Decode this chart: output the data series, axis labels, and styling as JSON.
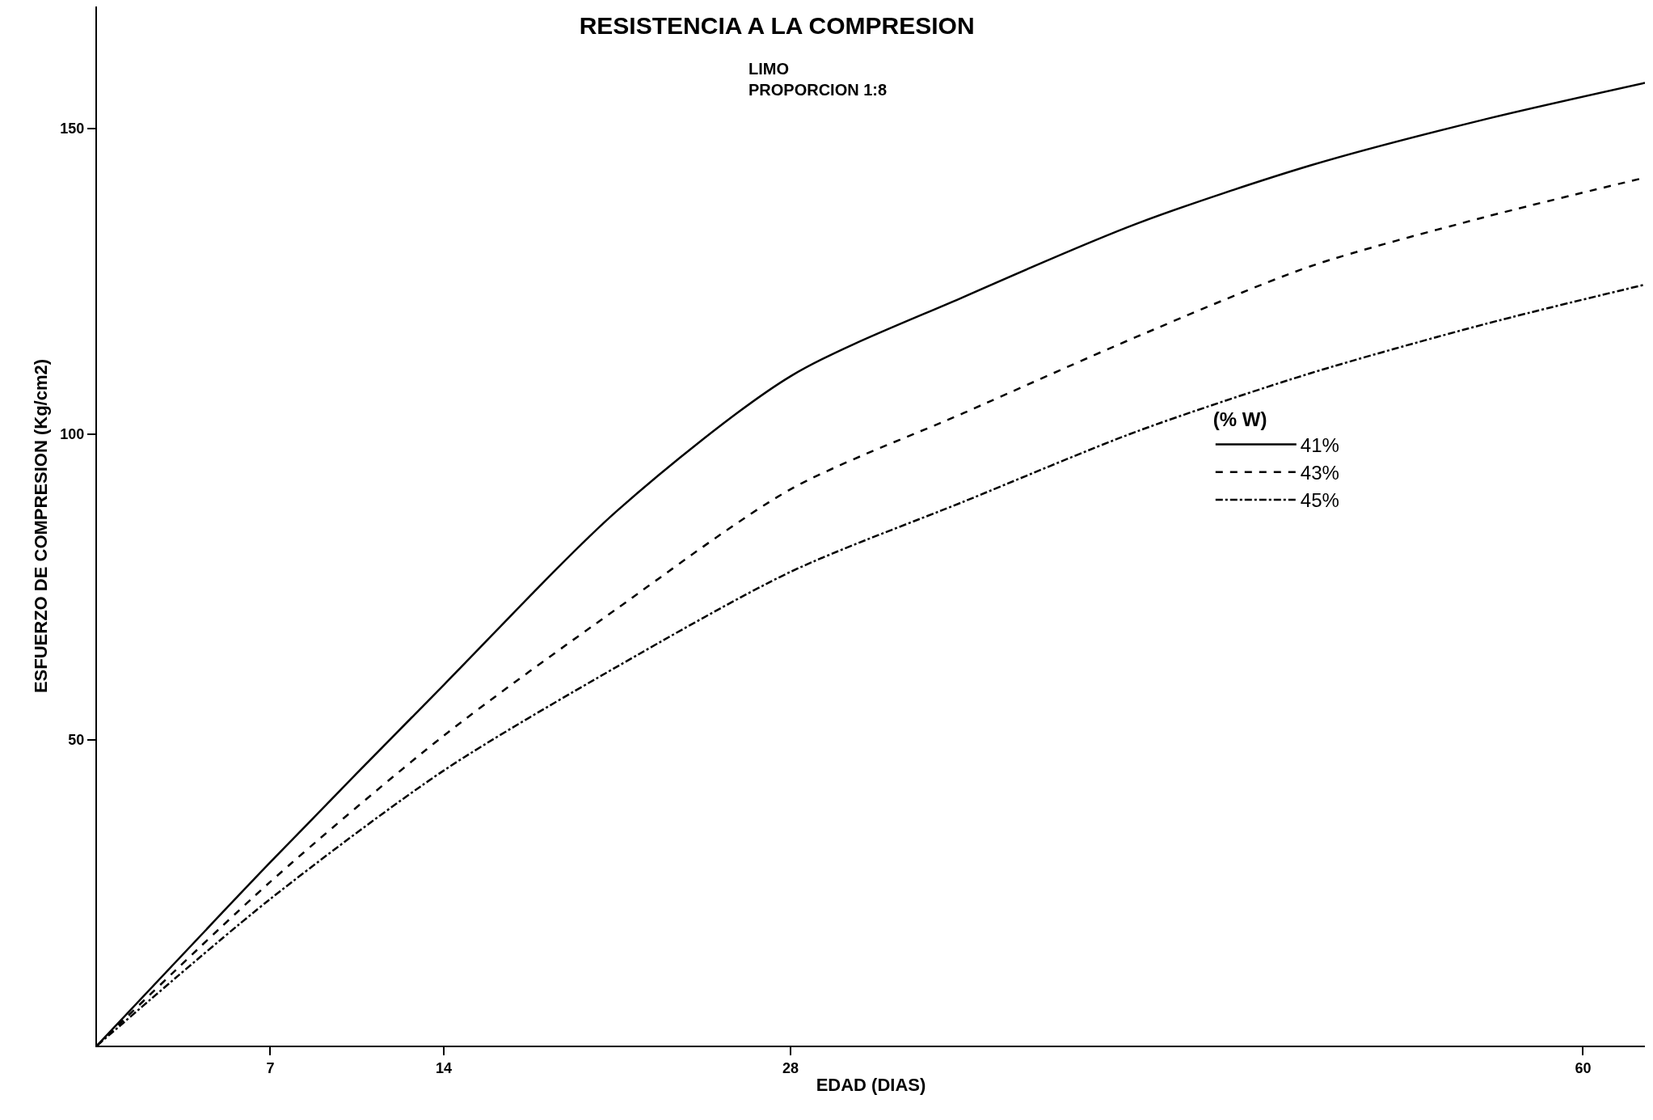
{
  "chart_data": {
    "type": "line",
    "title": "RESISTENCIA A LA COMPRESION",
    "subtitle": "LIMO\nPROPORCION 1:8",
    "xlabel": "EDAD (DIAS)",
    "ylabel": "ESFUERZO DE COMPRESION (Kg/cm2)",
    "legend_title": "(% W)",
    "x": [
      0,
      7,
      14,
      21,
      28,
      35,
      42,
      49,
      56,
      62.5
    ],
    "series": [
      {
        "name": "41%",
        "color": "#000000",
        "line_style": "solid",
        "values": [
          0,
          30,
          59,
          87.5,
          109.5,
          122.5,
          134.5,
          144,
          151.5,
          157.5
        ]
      },
      {
        "name": "43%",
        "color": "#000000",
        "line_style": "dashed",
        "values": [
          0,
          26.8,
          50.7,
          71.5,
          91,
          103.5,
          116,
          127.5,
          135.5,
          142
        ]
      },
      {
        "name": "45%",
        "color": "#000000",
        "line_style": "dashdot",
        "values": [
          0,
          24,
          45,
          62,
          77.5,
          89,
          100.5,
          110,
          118,
          124.5
        ]
      }
    ],
    "xlim": [
      0,
      62.5
    ],
    "xticks": [
      7,
      14,
      28,
      60
    ],
    "ylim": [
      0,
      170
    ],
    "yticks": [
      50,
      100,
      150
    ],
    "legend": "right",
    "marker": "none"
  }
}
